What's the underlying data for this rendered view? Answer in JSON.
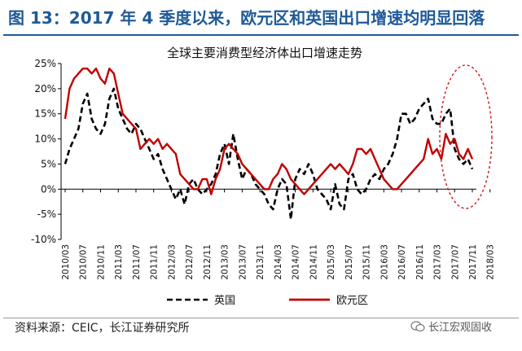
{
  "figure_title": "图 13：2017 年 4 季度以来，欧元区和英国出口增速均明显回落",
  "source": "资料来源：CEIC，长江证券研究所",
  "watermark": "长江宏观固收",
  "chart_data": {
    "type": "line",
    "title": "全球主要消费型经济体出口增速走势",
    "xlabel": "",
    "ylabel": "",
    "ylim": [
      -0.1,
      0.25
    ],
    "yticks": [
      -0.1,
      -0.05,
      0.0,
      0.05,
      0.1,
      0.15,
      0.2,
      0.25
    ],
    "ytick_labels": [
      "-10%",
      "-5%",
      "0%",
      "5%",
      "10%",
      "15%",
      "20%",
      "25%"
    ],
    "xtick_labels": [
      "2010/03",
      "2010/07",
      "2010/11",
      "2011/03",
      "2011/07",
      "2011/11",
      "2012/03",
      "2012/07",
      "2012/11",
      "2013/03",
      "2013/07",
      "2013/11",
      "2014/03",
      "2014/07",
      "2014/11",
      "2015/03",
      "2015/07",
      "2015/11",
      "2016/03",
      "2016/07",
      "2016/11",
      "2017/03",
      "2017/07",
      "2017/11",
      "2018/03"
    ],
    "x_start": "2010/03",
    "grid": false,
    "legend": "bottom",
    "annotation": "red dashed ellipse around 2017/07–2018/03",
    "series": [
      {
        "name": "英国",
        "style": "dashed",
        "color": "#000000",
        "values": [
          0.05,
          0.08,
          0.1,
          0.12,
          0.17,
          0.19,
          0.14,
          0.12,
          0.11,
          0.13,
          0.18,
          0.2,
          0.16,
          0.14,
          0.12,
          0.11,
          0.13,
          0.12,
          0.1,
          0.08,
          0.06,
          0.07,
          0.04,
          0.02,
          0.0,
          -0.02,
          0.0,
          -0.03,
          0.01,
          0.02,
          0.0,
          -0.01,
          0.0,
          0.01,
          0.03,
          0.07,
          0.09,
          0.05,
          0.11,
          0.06,
          0.02,
          0.04,
          0.03,
          0.01,
          0.0,
          -0.01,
          -0.03,
          -0.04,
          0.0,
          0.02,
          0.01,
          -0.06,
          0.02,
          0.04,
          0.03,
          0.05,
          0.03,
          0.0,
          -0.01,
          -0.02,
          -0.04,
          0.01,
          -0.03,
          -0.04,
          0.02,
          0.03,
          0.0,
          -0.01,
          0.0,
          0.02,
          0.03,
          0.02,
          0.04,
          0.05,
          0.07,
          0.1,
          0.15,
          0.15,
          0.13,
          0.14,
          0.16,
          0.17,
          0.18,
          0.14,
          0.13,
          0.13,
          0.15,
          0.16,
          0.08,
          0.06,
          0.05,
          0.06,
          0.04
        ]
      },
      {
        "name": "欧元区",
        "style": "solid",
        "color": "#c00000",
        "values": [
          0.14,
          0.2,
          0.22,
          0.23,
          0.24,
          0.24,
          0.23,
          0.24,
          0.22,
          0.21,
          0.24,
          0.23,
          0.19,
          0.15,
          0.14,
          0.13,
          0.12,
          0.08,
          0.09,
          0.1,
          0.09,
          0.1,
          0.08,
          0.09,
          0.08,
          0.07,
          0.03,
          0.02,
          0.01,
          0.0,
          0.0,
          0.02,
          0.02,
          -0.01,
          0.02,
          0.04,
          0.08,
          0.09,
          0.08,
          0.07,
          0.05,
          0.04,
          0.03,
          0.02,
          0.01,
          0.0,
          0.0,
          0.02,
          0.03,
          0.05,
          0.04,
          0.02,
          0.01,
          0.0,
          -0.01,
          0.0,
          0.01,
          0.02,
          0.03,
          0.04,
          0.05,
          0.04,
          0.05,
          0.04,
          0.03,
          0.05,
          0.08,
          0.08,
          0.07,
          0.08,
          0.06,
          0.04,
          0.02,
          0.01,
          0.0,
          0.0,
          0.01,
          0.02,
          0.03,
          0.04,
          0.05,
          0.06,
          0.1,
          0.07,
          0.08,
          0.06,
          0.11,
          0.09,
          0.1,
          0.07,
          0.06,
          0.08,
          0.06
        ]
      }
    ]
  }
}
